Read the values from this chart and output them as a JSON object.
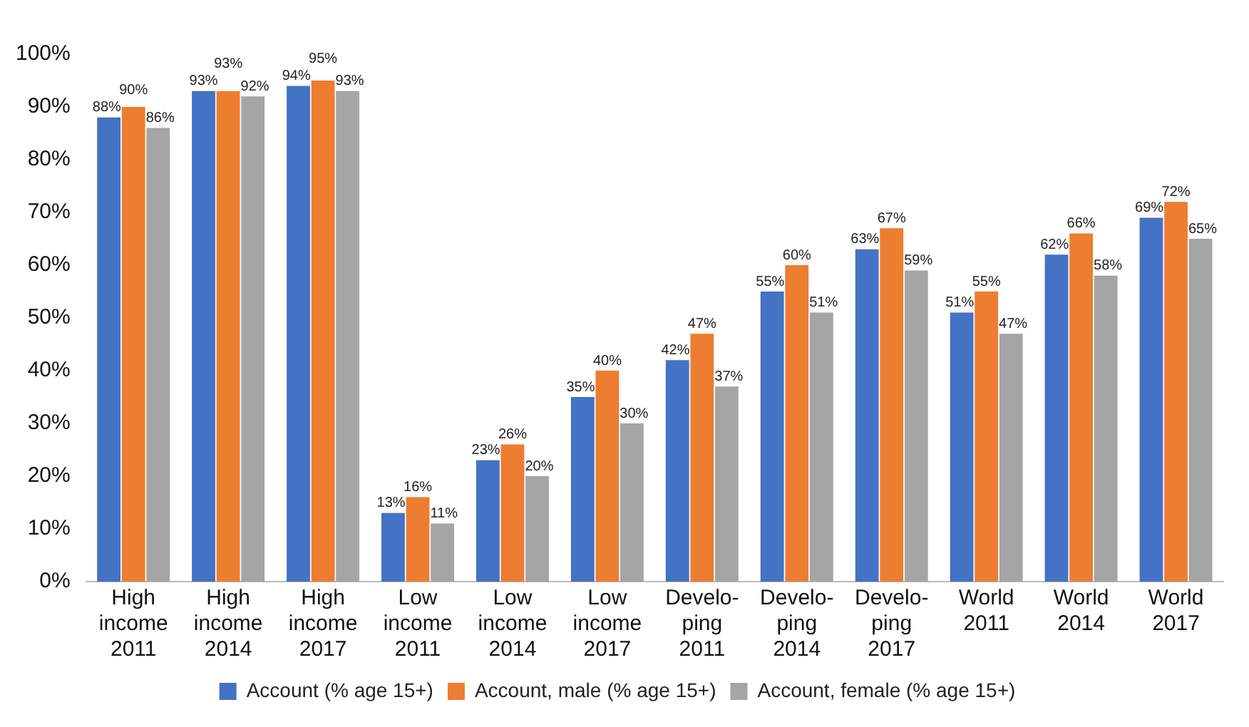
{
  "chart_data": {
    "type": "bar",
    "categories": [
      "High\nincome\n2011",
      "High\nincome\n2014",
      "High\nincome\n2017",
      "Low\nincome\n2011",
      "Low\nincome\n2014",
      "Low\nincome\n2017",
      "Develo-\nping\n2011",
      "Develo-\nping\n2014",
      "Develo-\nping\n2017",
      "World\n2011",
      "World\n2014",
      "World\n2017"
    ],
    "series": [
      {
        "name": "Account (% age 15+)",
        "color": "#4472c4",
        "values": [
          88,
          93,
          94,
          13,
          23,
          35,
          42,
          55,
          63,
          51,
          62,
          69
        ],
        "value_labels": [
          "88%",
          "93%",
          "94%",
          "13%",
          "23%",
          "35%",
          "42%",
          "55%",
          "63%",
          "51%",
          "62%",
          "69%"
        ]
      },
      {
        "name": "Account, male (% age 15+)",
        "color": "#ed7d31",
        "values": [
          90,
          93,
          95,
          16,
          26,
          40,
          47,
          60,
          67,
          55,
          66,
          72
        ],
        "value_labels": [
          "90%",
          "93%",
          "95%",
          "16%",
          "26%",
          "40%",
          "47%",
          "60%",
          "67%",
          "55%",
          "66%",
          "72%"
        ]
      },
      {
        "name": "Account, female (% age 15+)",
        "color": "#a5a5a5",
        "values": [
          86,
          92,
          93,
          11,
          20,
          30,
          37,
          51,
          59,
          47,
          58,
          65
        ],
        "value_labels": [
          "86%",
          "92%",
          "93%",
          "11%",
          "20%",
          "30%",
          "37%",
          "51%",
          "59%",
          "47%",
          "58%",
          "65%"
        ]
      }
    ],
    "ylim": [
      0,
      100
    ],
    "yticks": [
      {
        "value": 0,
        "label": "0%"
      },
      {
        "value": 10,
        "label": "10%"
      },
      {
        "value": 20,
        "label": "20%"
      },
      {
        "value": 30,
        "label": "30%"
      },
      {
        "value": 40,
        "label": "40%"
      },
      {
        "value": 50,
        "label": "50%"
      },
      {
        "value": 60,
        "label": "60%"
      },
      {
        "value": 70,
        "label": "70%"
      },
      {
        "value": 80,
        "label": "80%"
      },
      {
        "value": 90,
        "label": "90%"
      },
      {
        "value": 100,
        "label": "100%"
      }
    ],
    "grid": false,
    "legend": "bottom"
  }
}
